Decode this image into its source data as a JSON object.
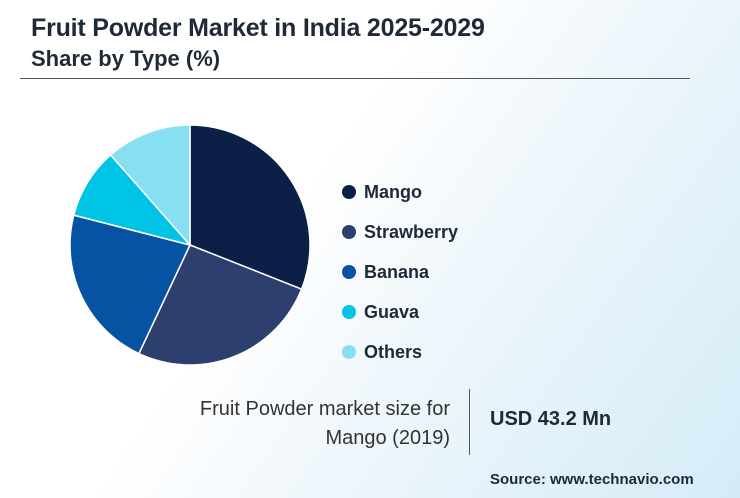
{
  "header": {
    "title": "Fruit Powder Market in India 2025-2029",
    "subtitle": "Share by Type (%)"
  },
  "chart_data": {
    "type": "pie",
    "title": "Fruit Powder Market in India 2025-2029",
    "subtitle": "Share by Type (%)",
    "categories": [
      "Mango",
      "Strawberry",
      "Banana",
      "Guava",
      "Others"
    ],
    "values": [
      31,
      26,
      22,
      9.5,
      11.5
    ],
    "colors": [
      "#0c1f47",
      "#2c3f6e",
      "#0653a3",
      "#00c4e6",
      "#87dff2"
    ],
    "legend_position": "right"
  },
  "market_size": {
    "label_line1": "Fruit Powder market size for",
    "label_line2": "Mango (2019)",
    "value": "USD 43.2 Mn"
  },
  "footer": {
    "source": "Source: www.technavio.com"
  }
}
